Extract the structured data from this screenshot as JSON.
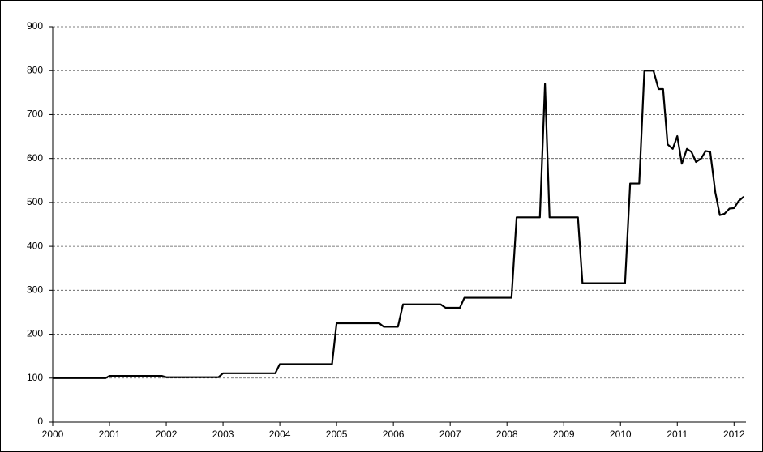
{
  "chart_data": {
    "type": "line",
    "x": [
      2000,
      2000.93,
      2001.0,
      2001.92,
      2002.0,
      2002.92,
      2003.0,
      2003.92,
      2004.0,
      2004.92,
      2005.0,
      2005.75,
      2005.83,
      2006.08,
      2006.17,
      2006.83,
      2006.92,
      2007.17,
      2007.25,
      2008.08,
      2008.17,
      2008.58,
      2008.67,
      2008.75,
      2009.25,
      2009.33,
      2010.08,
      2010.17,
      2010.33,
      2010.42,
      2010.58,
      2010.67,
      2010.75,
      2010.83,
      2010.92,
      2011.0,
      2011.08,
      2011.17,
      2011.25,
      2011.33,
      2011.42,
      2011.5,
      2011.58,
      2011.67,
      2011.75,
      2011.83,
      2011.92,
      2012.0,
      2012.08,
      2012.17
    ],
    "series": [
      {
        "color": "#000000",
        "values": [
          100,
          100,
          105,
          105,
          102,
          102,
          111,
          111,
          132,
          132,
          225,
          225,
          217,
          217,
          268,
          268,
          260,
          260,
          283,
          283,
          466,
          466,
          770,
          466,
          466,
          316,
          316,
          543,
          543,
          800,
          800,
          758,
          758,
          632,
          622,
          651,
          588,
          622,
          615,
          592,
          600,
          617,
          615,
          523,
          471,
          474,
          486,
          487,
          503,
          513
        ]
      }
    ],
    "xlim": [
      2000,
      2012.21
    ],
    "xticks": [
      2000,
      2001,
      2002,
      2003,
      2004,
      2005,
      2006,
      2007,
      2008,
      2009,
      2010,
      2011,
      2012
    ],
    "ylim": [
      0,
      900
    ],
    "yticks": [
      0,
      100,
      200,
      300,
      400,
      500,
      600,
      700,
      800,
      900
    ],
    "grid": true
  }
}
